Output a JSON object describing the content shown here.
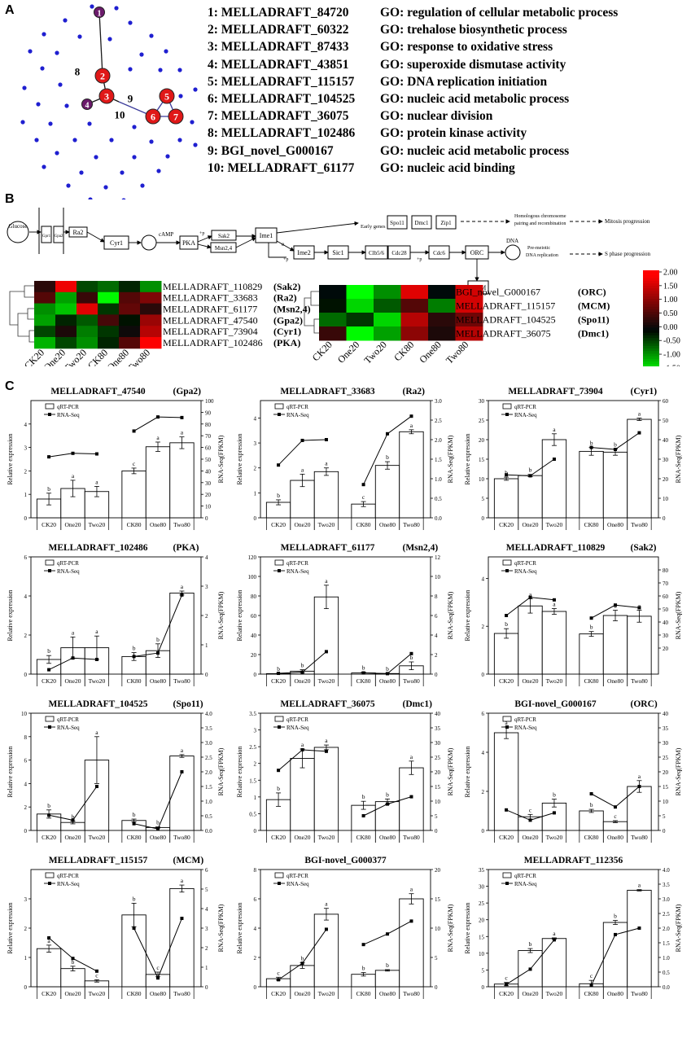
{
  "panel_labels": {
    "a": "A",
    "b": "B",
    "c": "C"
  },
  "network": {
    "numbered_nodes": [
      "1",
      "2",
      "3",
      "4",
      "5",
      "6",
      "7",
      "8",
      "9",
      "10"
    ]
  },
  "go_list": [
    {
      "id": "1: MELLADRAFT_84720",
      "term": "GO: regulation of cellular metabolic process"
    },
    {
      "id": "2: MELLADRAFT_60322",
      "term": "GO: trehalose biosynthetic process"
    },
    {
      "id": "3: MELLADRAFT_87433",
      "term": "GO: response to oxidative stress"
    },
    {
      "id": "4: MELLADRAFT_43851",
      "term": "GO: superoxide dismutase activity"
    },
    {
      "id": "5: MELLADRAFT_115157",
      "term": "GO: DNA replication initiation"
    },
    {
      "id": "6: MELLADRAFT_104525",
      "term": "GO: nucleic acid metabolic process"
    },
    {
      "id": "7: MELLADRAFT_36075",
      "term": "GO: nuclear division"
    },
    {
      "id": "8: MELLADRAFT_102486",
      "term": "GO: protein kinase activity"
    },
    {
      "id": "9: BGI_novel_G000167",
      "term": "GO: nucleic acid metabolic process"
    },
    {
      "id": "10: MELLADRAFT_61177",
      "term": "GO: nucleic acid binding"
    }
  ],
  "pathway": {
    "glucose": "Glucose",
    "gpr1": "Gpr1",
    "gpa2": "Gpa2",
    "ra2": "Ra2",
    "cyr1": "Cyr1",
    "camp": "cAMP",
    "pka": "PKA",
    "sak2": "Sak2",
    "msn24": "Msn2,4",
    "ime1": "Ime1",
    "ime2": "Ime2",
    "sic1": "Sic1",
    "clb": "Clb5/6",
    "cdc28": "Cdc28",
    "cdc6": "Cdc6",
    "orc": "ORC",
    "mcm": "MCM",
    "dna": "DNA",
    "early_genes": "Early genes",
    "spo11": "Spo11",
    "dmc1": "Dmc1",
    "zip1": "Zip1",
    "homologous": "Homologous chromosome",
    "pairing": "pairing and recombination",
    "mitosis": "Mitosis progression",
    "premeiotic": "Pre-meiotic",
    "dnarep": "DNA replication",
    "sphase": "S phase progression",
    "p": "+p",
    "e": "e"
  },
  "heatmap_left": {
    "rows": [
      "MELLADRAFT_110829",
      "MELLADRAFT_33683",
      "MELLADRAFT_61177",
      "MELLADRAFT_47540",
      "MELLADRAFT_73904",
      "MELLADRAFT_102486"
    ],
    "tags": [
      "(Sak2)",
      "(Ra2)",
      "(Msn2,4)",
      "(Gpa2)",
      "(Cyr1)",
      "(PKA)"
    ],
    "cols": [
      "CK20",
      "One20",
      "Two20",
      "CK80",
      "One80",
      "Two80"
    ],
    "values": [
      [
        0.3,
        1.7,
        -0.4,
        -0.6,
        -0.2,
        -0.8
      ],
      [
        0.6,
        -0.9,
        0.4,
        -1.4,
        0.6,
        0.9
      ],
      [
        -0.8,
        -1.1,
        1.6,
        -0.3,
        0.7,
        0.3
      ],
      [
        -0.9,
        -0.2,
        -0.5,
        0.5,
        -0.1,
        1.1
      ],
      [
        -0.4,
        0.2,
        -0.7,
        -0.3,
        0.1,
        1.3
      ],
      [
        -1.0,
        -0.4,
        -0.8,
        -0.2,
        0.6,
        1.8
      ]
    ]
  },
  "heatmap_right": {
    "rows": [
      "BGI_novel_G000167",
      "MELLADRAFT_115157",
      "MELLADRAFT_104525",
      "MELLADRAFT_36075"
    ],
    "tags": [
      "(ORC)",
      "(MCM)",
      "(Spo11)",
      "(Dmc1)"
    ],
    "cols": [
      "CK20",
      "One20",
      "Two20",
      "CK80",
      "One80",
      "Two80"
    ],
    "values": [
      [
        0.0,
        -1.5,
        -0.8,
        1.6,
        0.0,
        1.5
      ],
      [
        -0.1,
        -1.2,
        -0.5,
        0.6,
        -0.7,
        1.5
      ],
      [
        -0.6,
        -0.3,
        -1.2,
        1.3,
        0.3,
        0.8
      ],
      [
        0.4,
        -1.4,
        -0.9,
        1.0,
        0.2,
        1.3
      ]
    ]
  },
  "colorbar": {
    "ticks": [
      "2.00",
      "1.50",
      "1.00",
      "0.50",
      "0.00",
      "-0.50",
      "-1.00",
      "-1.50"
    ],
    "range": [
      -1.5,
      2.0
    ]
  },
  "chart_data": [
    {
      "type": "bar",
      "title": "MELLADRAFT_47540",
      "tag": "(Gpa2)",
      "categories": [
        "CK20",
        "One20",
        "Two20",
        "CK80",
        "One80",
        "Two80"
      ],
      "ylabel": "Relative expression",
      "y2label": "RNA-Seq(FPKM)",
      "ylim": [
        0,
        5
      ],
      "yticks": [
        0,
        1,
        2,
        3,
        4
      ],
      "y2lim": [
        0,
        100
      ],
      "y2ticks": [
        0,
        10,
        20,
        30,
        40,
        50,
        60,
        70,
        80,
        90,
        100
      ],
      "series": [
        {
          "name": "qRT-PCR",
          "values": [
            0.8,
            1.25,
            1.12,
            2.0,
            3.03,
            3.2
          ],
          "err": [
            0.25,
            0.35,
            0.22,
            0.12,
            0.2,
            0.25
          ],
          "letters": [
            "b",
            "a",
            "a",
            "c",
            "a",
            "a"
          ]
        },
        {
          "name": "RNA-Seq",
          "values": [
            52,
            55,
            54.5,
            74,
            86,
            85.5
          ]
        }
      ]
    },
    {
      "type": "bar",
      "title": "MELLADRAFT_33683",
      "tag": "(Ra2)",
      "categories": [
        "CK20",
        "One20",
        "Two20",
        "CK80",
        "One80",
        "Two80"
      ],
      "ylabel": "Relative expression",
      "y2label": "RNA-Seq(FPKM)",
      "ylim": [
        0,
        4.7
      ],
      "yticks": [
        0,
        1,
        2,
        3,
        4
      ],
      "y2lim": [
        0,
        3.0
      ],
      "y2ticks": [
        0.0,
        0.5,
        1.0,
        1.5,
        2.0,
        2.5,
        3.0
      ],
      "series": [
        {
          "name": "qRT-PCR",
          "values": [
            0.62,
            1.5,
            1.85,
            0.55,
            2.1,
            3.45
          ],
          "err": [
            0.1,
            0.25,
            0.15,
            0.1,
            0.15,
            0.08
          ],
          "letters": [
            "b",
            "a",
            "a",
            "c",
            "b",
            "a"
          ]
        },
        {
          "name": "RNA-Seq",
          "values": [
            1.35,
            1.98,
            2.0,
            0.85,
            2.15,
            2.6
          ]
        }
      ]
    },
    {
      "type": "bar",
      "title": "MELLADRAFT_73904",
      "tag": "(Cyr1)",
      "categories": [
        "CK20",
        "One20",
        "Two20",
        "CK80",
        "One80",
        "Two80"
      ],
      "ylabel": "Relative expression",
      "y2label": "RNA-Seq(FPKM)",
      "ylim": [
        0,
        30
      ],
      "yticks": [
        0,
        5,
        10,
        15,
        20,
        25,
        30
      ],
      "y2lim": [
        0,
        60
      ],
      "y2ticks": [
        0,
        10,
        20,
        30,
        40,
        50,
        60
      ],
      "series": [
        {
          "name": "qRT-PCR",
          "values": [
            10,
            10.8,
            20,
            17,
            16.8,
            25.2
          ],
          "err": [
            0.4,
            0.3,
            1.5,
            1.0,
            0.8,
            0.3
          ],
          "letters": [
            "b",
            "b",
            "a",
            "b",
            "b",
            "a"
          ]
        },
        {
          "name": "RNA-Seq",
          "values": [
            22,
            21.5,
            30,
            36,
            35,
            43.5
          ]
        }
      ]
    },
    {
      "type": "bar",
      "title": "MELLADRAFT_102486",
      "tag": "(PKA)",
      "categories": [
        "CK20",
        "One20",
        "Two20",
        "CK80",
        "One80",
        "Two80"
      ],
      "ylabel": "Relative expression",
      "y2label": "RNA-Seq(FPKM)",
      "ylim": [
        0,
        6
      ],
      "yticks": [
        0,
        2,
        4,
        6
      ],
      "y2lim": [
        0,
        4
      ],
      "y2ticks": [
        0,
        1,
        2,
        3,
        4
      ],
      "series": [
        {
          "name": "qRT-PCR",
          "values": [
            0.75,
            1.35,
            1.35,
            0.9,
            1.2,
            4.15
          ],
          "err": [
            0.2,
            0.55,
            0.6,
            0.2,
            0.35,
            0.1
          ],
          "letters": [
            "b",
            "a",
            "a",
            "b",
            "b",
            "a"
          ]
        },
        {
          "name": "RNA-Seq",
          "values": [
            0.15,
            0.55,
            0.5,
            0.6,
            0.72,
            2.7
          ]
        }
      ]
    },
    {
      "type": "bar",
      "title": "MELLADRAFT_61177",
      "tag": "(Msn2,4)",
      "categories": [
        "CK20",
        "One20",
        "Two20",
        "CK80",
        "One80",
        "Two80"
      ],
      "ylabel": "Relative expression",
      "y2label": "RNA-Seq(FPKM)",
      "ylim": [
        0,
        120
      ],
      "yticks": [
        0,
        20,
        40,
        60,
        80,
        100,
        120
      ],
      "y2lim": [
        0,
        12
      ],
      "y2ticks": [
        0,
        2,
        4,
        6,
        8,
        10,
        12
      ],
      "series": [
        {
          "name": "qRT-PCR",
          "values": [
            0.5,
            3,
            79,
            1.2,
            0.6,
            8.5
          ],
          "err": [
            0.3,
            1.5,
            12,
            1,
            0.3,
            4
          ],
          "letters": [
            "b",
            "b",
            "a",
            "b",
            "b",
            "b"
          ]
        },
        {
          "name": "RNA-Seq",
          "values": [
            0.08,
            0.2,
            2.3,
            0.12,
            0.05,
            2.1
          ]
        }
      ]
    },
    {
      "type": "bar",
      "title": "MELLADRAFT_110829",
      "tag": "(Sak2)",
      "categories": [
        "CK20",
        "One20",
        "Two20",
        "CK80",
        "One80",
        "Two80"
      ],
      "ylabel": "Relative expression",
      "y2label": "RNA-Seq(FPKM)",
      "ylim": [
        0,
        4.9
      ],
      "yticks": [
        0,
        2,
        4
      ],
      "y2lim": [
        0,
        90
      ],
      "y2ticks": [
        20,
        30,
        40,
        50,
        60,
        70,
        80
      ],
      "series": [
        {
          "name": "qRT-PCR",
          "values": [
            1.7,
            2.85,
            2.62,
            1.68,
            2.45,
            2.42
          ],
          "err": [
            0.2,
            0.3,
            0.12,
            0.1,
            0.22,
            0.25
          ],
          "letters": [
            "b",
            "a",
            "a",
            "b",
            "a",
            "a"
          ]
        },
        {
          "name": "RNA-Seq",
          "values": [
            45,
            59,
            57,
            43,
            53,
            51
          ]
        }
      ]
    },
    {
      "type": "bar",
      "title": "MELLADRAFT_104525",
      "tag": "(Spo11)",
      "categories": [
        "CK20",
        "One20",
        "Two20",
        "CK80",
        "One80",
        "Two80"
      ],
      "ylabel": "Relative expression",
      "y2label": "RNA-Seq(FPKM)",
      "ylim": [
        0,
        10
      ],
      "yticks": [
        0,
        2,
        4,
        6,
        8,
        10
      ],
      "y2lim": [
        0,
        4.0
      ],
      "y2ticks": [
        0.0,
        0.5,
        1.0,
        1.5,
        2.0,
        2.5,
        3.0,
        3.5,
        4.0
      ],
      "series": [
        {
          "name": "qRT-PCR",
          "values": [
            1.4,
            0.68,
            6.0,
            0.85,
            0.25,
            6.35
          ],
          "err": [
            0.35,
            0.12,
            2.0,
            0.12,
            0.05,
            0.12
          ],
          "letters": [
            "b",
            "b",
            "a",
            "b",
            "b",
            "a"
          ]
        },
        {
          "name": "RNA-Seq",
          "values": [
            0.52,
            0.35,
            1.5,
            0.23,
            0.05,
            2.0
          ]
        }
      ]
    },
    {
      "type": "bar",
      "title": "MELLADRAFT_36075",
      "tag": "(Dmc1)",
      "categories": [
        "CK20",
        "One20",
        "Two20",
        "CK80",
        "One80",
        "Two80"
      ],
      "ylabel": "Relative expression",
      "y2label": "RNA-Seq(FPKM)",
      "ylim": [
        0,
        3.5
      ],
      "yticks": [
        0.0,
        0.5,
        1.0,
        1.5,
        2.0,
        2.5,
        3.0,
        3.5
      ],
      "y2lim": [
        0,
        40
      ],
      "y2ticks": [
        0,
        5,
        10,
        15,
        20,
        25,
        30,
        35,
        40
      ],
      "series": [
        {
          "name": "qRT-PCR",
          "values": [
            0.92,
            2.15,
            2.48,
            0.75,
            0.86,
            1.87
          ],
          "err": [
            0.2,
            0.28,
            0.07,
            0.12,
            0.08,
            0.2
          ],
          "letters": [
            "b",
            "a",
            "a",
            "b",
            "b",
            "a"
          ]
        },
        {
          "name": "RNA-Seq",
          "values": [
            20.5,
            27.5,
            27,
            5,
            9,
            11.5
          ]
        }
      ]
    },
    {
      "type": "bar",
      "title": "BGI-novel_G000167",
      "tag": "(ORC)",
      "categories": [
        "CK20",
        "One20",
        "Two20",
        "CK80",
        "One80",
        "Two80"
      ],
      "ylabel": "Relative expression",
      "y2label": "RNA-Seq(FPKM)",
      "ylim": [
        0,
        6
      ],
      "yticks": [
        0,
        2,
        4,
        6
      ],
      "y2lim": [
        0,
        40
      ],
      "y2ticks": [
        0,
        5,
        10,
        15,
        20,
        25,
        30,
        35,
        40
      ],
      "series": [
        {
          "name": "qRT-PCR",
          "values": [
            5.0,
            0.7,
            1.4,
            1.0,
            0.45,
            2.25
          ],
          "err": [
            0.3,
            0.12,
            0.2,
            0.08,
            0.05,
            0.3
          ],
          "letters": [
            "a",
            "c",
            "b",
            "b",
            "c",
            "a"
          ]
        },
        {
          "name": "RNA-Seq",
          "values": [
            7,
            3.5,
            6,
            12.5,
            8,
            15
          ]
        }
      ]
    },
    {
      "type": "bar",
      "title": "MELLADRAFT_115157",
      "tag": "(MCM)",
      "categories": [
        "CK20",
        "One20",
        "Two20",
        "CK80",
        "One80",
        "Two80"
      ],
      "ylabel": "Relative expression",
      "y2label": "RNA-Seq(FPKM)",
      "ylim": [
        0,
        4
      ],
      "yticks": [
        0,
        1,
        2,
        3
      ],
      "y2lim": [
        0,
        6
      ],
      "y2ticks": [
        0,
        1,
        2,
        3,
        4,
        5,
        6
      ],
      "series": [
        {
          "name": "qRT-PCR",
          "values": [
            1.3,
            0.62,
            0.2,
            2.45,
            0.42,
            3.35
          ],
          "err": [
            0.12,
            0.08,
            0.04,
            0.4,
            0.08,
            0.12
          ],
          "letters": [
            "a",
            "b",
            "c",
            "b",
            "c",
            "a"
          ]
        },
        {
          "name": "RNA-Seq",
          "values": [
            2.5,
            1.45,
            0.8,
            3.0,
            0.45,
            3.5
          ]
        }
      ]
    },
    {
      "type": "bar",
      "title": "BGI-novel_G000377",
      "tag": "",
      "categories": [
        "CK20",
        "One20",
        "Two20",
        "CK80",
        "One80",
        "Two80"
      ],
      "ylabel": "Relative expression",
      "y2label": "RNA-Seq(FPKM)",
      "ylim": [
        0,
        8
      ],
      "yticks": [
        0,
        2,
        4,
        6,
        8
      ],
      "y2lim": [
        0,
        20
      ],
      "y2ticks": [
        0,
        5,
        10,
        15,
        20
      ],
      "series": [
        {
          "name": "qRT-PCR",
          "values": [
            0.55,
            1.45,
            4.95,
            0.85,
            1.12,
            6.0
          ],
          "err": [
            0.1,
            0.2,
            0.4,
            0.12,
            0.05,
            0.35
          ],
          "letters": [
            "c",
            "b",
            "a",
            "b",
            "b",
            "a"
          ]
        },
        {
          "name": "RNA-Seq",
          "values": [
            1.2,
            4.0,
            9.8,
            7.2,
            9.0,
            11.2
          ]
        }
      ]
    },
    {
      "type": "bar",
      "title": "MELLADRAFT_112356",
      "tag": "",
      "categories": [
        "CK20",
        "One20",
        "Two20",
        "CK80",
        "One80",
        "Two80"
      ],
      "ylabel": "Relative expression",
      "y2label": "RNA-Seq(FPKM)",
      "ylim": [
        0,
        35
      ],
      "yticks": [
        0,
        5,
        10,
        15,
        20,
        25,
        30,
        35
      ],
      "y2lim": [
        0,
        4.0
      ],
      "y2ticks": [
        0.0,
        0.5,
        1.0,
        1.5,
        2.0,
        2.5,
        3.0,
        3.5,
        4.0
      ],
      "series": [
        {
          "name": "qRT-PCR",
          "values": [
            0.8,
            10.8,
            14.4,
            0.9,
            19.2,
            28.8
          ],
          "err": [
            0.5,
            0.6,
            0.2,
            1.0,
            0.6,
            0.2
          ],
          "letters": [
            "c",
            "b",
            "a",
            "c",
            "b",
            "a"
          ]
        },
        {
          "name": "RNA-Seq",
          "values": [
            0.08,
            0.6,
            1.6,
            0.05,
            1.78,
            2.0
          ]
        }
      ]
    }
  ]
}
